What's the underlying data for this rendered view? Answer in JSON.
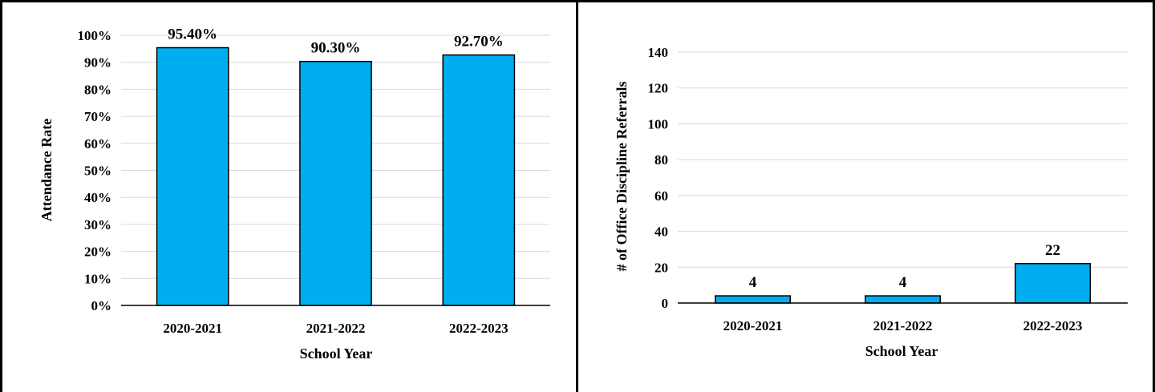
{
  "chart_data": [
    {
      "type": "bar",
      "categories": [
        "2020-2021",
        "2021-2022",
        "2022-2023"
      ],
      "values": [
        95.4,
        90.3,
        92.7
      ],
      "data_labels": [
        "95.40%",
        "90.30%",
        "92.70%"
      ],
      "xlabel": "School Year",
      "ylabel": "Attendance Rate",
      "ylim": [
        0,
        100
      ],
      "yticks": [
        0,
        10,
        20,
        30,
        40,
        50,
        60,
        70,
        80,
        90,
        100
      ],
      "ytick_labels": [
        "0%",
        "10%",
        "20%",
        "30%",
        "40%",
        "50%",
        "60%",
        "70%",
        "80%",
        "90%",
        "100%"
      ],
      "grid": true,
      "bar_color": "#00AEEF"
    },
    {
      "type": "bar",
      "categories": [
        "2020-2021",
        "2021-2022",
        "2022-2023"
      ],
      "values": [
        4,
        4,
        22
      ],
      "data_labels": [
        "4",
        "4",
        "22"
      ],
      "xlabel": "School Year",
      "ylabel": "# of Office Discipline Referrals",
      "ylim": [
        0,
        140
      ],
      "yticks": [
        0,
        20,
        40,
        60,
        80,
        100,
        120,
        140
      ],
      "ytick_labels": [
        "0",
        "20",
        "40",
        "60",
        "80",
        "100",
        "120",
        "140"
      ],
      "grid": true,
      "bar_color": "#00AEEF"
    }
  ]
}
